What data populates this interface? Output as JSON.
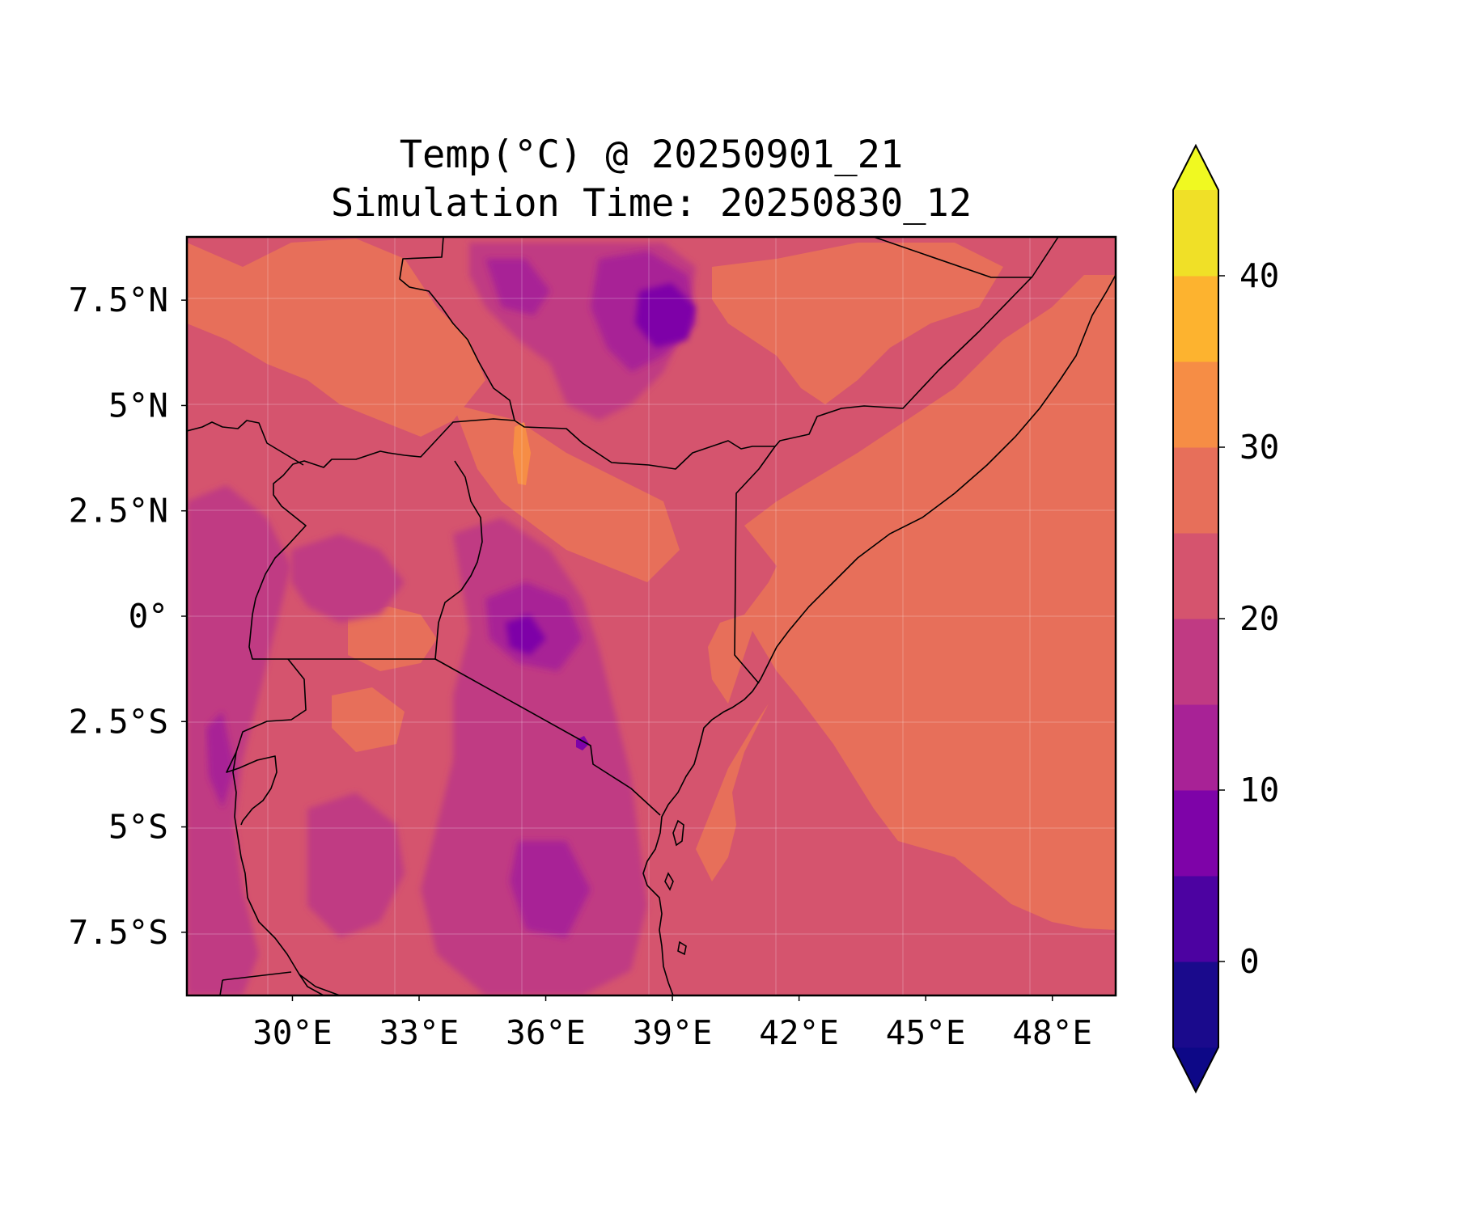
{
  "title": {
    "line1": "Temp(°C) @ 20250901_21",
    "line2": "Simulation Time: 20250830_12"
  },
  "map": {
    "lon_range": [
      27.5,
      49.5
    ],
    "lat_range": [
      -9.0,
      9.0
    ],
    "x_ticks": [
      {
        "value": 30,
        "label": "30°E"
      },
      {
        "value": 33,
        "label": "33°E"
      },
      {
        "value": 36,
        "label": "36°E"
      },
      {
        "value": 39,
        "label": "39°E"
      },
      {
        "value": 42,
        "label": "42°E"
      },
      {
        "value": 45,
        "label": "45°E"
      },
      {
        "value": 48,
        "label": "48°E"
      }
    ],
    "y_ticks": [
      {
        "value": 7.5,
        "label": "7.5°N"
      },
      {
        "value": 5,
        "label": "5°N"
      },
      {
        "value": 2.5,
        "label": "2.5°N"
      },
      {
        "value": 0,
        "label": "0°"
      },
      {
        "value": -2.5,
        "label": "2.5°S"
      },
      {
        "value": -5,
        "label": "5°S"
      },
      {
        "value": -7.5,
        "label": "7.5°S"
      }
    ],
    "gridlines": true
  },
  "colorbar": {
    "range": [
      -5,
      45
    ],
    "extend": "both",
    "levels": [
      {
        "from": -5,
        "to": 0,
        "color": "#1a0a8c"
      },
      {
        "from": 0,
        "to": 5,
        "color": "#4c02a1"
      },
      {
        "from": 5,
        "to": 10,
        "color": "#7e03a8"
      },
      {
        "from": 10,
        "to": 15,
        "color": "#a82296"
      },
      {
        "from": 15,
        "to": 20,
        "color": "#c03a83"
      },
      {
        "from": 20,
        "to": 25,
        "color": "#d5546e"
      },
      {
        "from": 25,
        "to": 30,
        "color": "#e76f5a"
      },
      {
        "from": 30,
        "to": 35,
        "color": "#f68d45"
      },
      {
        "from": 35,
        "to": 40,
        "color": "#fdb32f"
      },
      {
        "from": 40,
        "to": 45,
        "color": "#f0e027"
      }
    ],
    "under_color": "#0d0887",
    "over_color": "#f0f921",
    "ticks": [
      {
        "value": 0,
        "label": "0"
      },
      {
        "value": 10,
        "label": "10"
      },
      {
        "value": 20,
        "label": "20"
      },
      {
        "value": 30,
        "label": "30"
      },
      {
        "value": 40,
        "label": "40"
      }
    ]
  }
}
